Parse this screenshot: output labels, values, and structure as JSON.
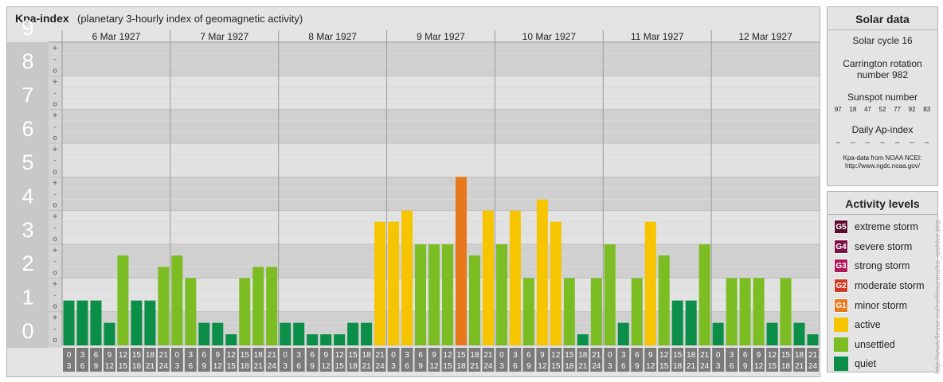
{
  "chart_title": "Kpa-index",
  "chart_subtitle": "(planetary 3-hourly index of geomagnetic activity)",
  "solar": {
    "title": "Solar data",
    "cycle": "Solar cycle 16",
    "carrington_line1": "Carrington rotation",
    "carrington_line2": "number 982",
    "sunspot_title": "Sunspot number",
    "sunspot_values": [
      "97",
      "18",
      "47",
      "52",
      "77",
      "92",
      "83"
    ],
    "ap_title": "Daily Ap-index",
    "ap_values": [
      "--",
      "--",
      "--",
      "--",
      "--",
      "--",
      "--"
    ],
    "source_line1": "Kpa-data from NOAA NCEI:",
    "source_line2": "http://www.ngdc.noaa.gov/"
  },
  "activity": {
    "title": "Activity levels",
    "items": [
      {
        "code": "G5",
        "label": "extreme storm",
        "color": "#5a0c2e"
      },
      {
        "code": "G4",
        "label": "severe storm",
        "color": "#7b1146"
      },
      {
        "code": "G3",
        "label": "strong storm",
        "color": "#b0185a"
      },
      {
        "code": "G2",
        "label": "moderate storm",
        "color": "#cf3a24"
      },
      {
        "code": "G1",
        "label": "minor storm",
        "color": "#e8781c"
      },
      {
        "code": "",
        "label": "active",
        "color": "#f7c400"
      },
      {
        "code": "",
        "label": "unsettled",
        "color": "#7bbd22"
      },
      {
        "code": "",
        "label": "quiet",
        "color": "#0b8e48"
      }
    ]
  },
  "watermark": "http://www.fleuse.eu/earlikaurora/ko_archive.php",
  "chart_data": {
    "type": "bar",
    "ylim": [
      0,
      9
    ],
    "y_ticks": [
      "0",
      "1",
      "2",
      "3",
      "4",
      "5",
      "6",
      "7",
      "8",
      "9"
    ],
    "sub_ticks": [
      "o",
      "-",
      "+"
    ],
    "days": [
      "6 Mar 1927",
      "7 Mar 1927",
      "8 Mar 1927",
      "9 Mar 1927",
      "10 Mar 1927",
      "11 Mar 1927",
      "12 Mar 1927"
    ],
    "hour_start": [
      "0",
      "3",
      "6",
      "9",
      "12",
      "15",
      "18",
      "21"
    ],
    "hour_end": [
      "3",
      "6",
      "9",
      "12",
      "15",
      "18",
      "21",
      "24"
    ],
    "level_colors": {
      "quiet": "#0b8e48",
      "unsettled": "#7bbd22",
      "active": "#f7c400",
      "minor storm": "#e8781c"
    },
    "values": [
      [
        1.33,
        1.33,
        1.33,
        0.67,
        2.67,
        1.33,
        1.33,
        2.33
      ],
      [
        2.67,
        2.0,
        0.67,
        0.67,
        0.33,
        2.0,
        2.33,
        2.33
      ],
      [
        0.67,
        0.67,
        0.33,
        0.33,
        0.33,
        0.67,
        0.67,
        3.67
      ],
      [
        3.67,
        4.0,
        3.0,
        3.0,
        3.0,
        5.0,
        2.67,
        4.0
      ],
      [
        3.0,
        4.0,
        2.0,
        4.33,
        3.67,
        2.0,
        0.33,
        2.0
      ],
      [
        3.0,
        0.67,
        2.0,
        3.67,
        2.67,
        1.33,
        1.33,
        3.0
      ],
      [
        0.67,
        2.0,
        2.0,
        2.0,
        0.67,
        2.0,
        0.67,
        0.33
      ]
    ]
  }
}
